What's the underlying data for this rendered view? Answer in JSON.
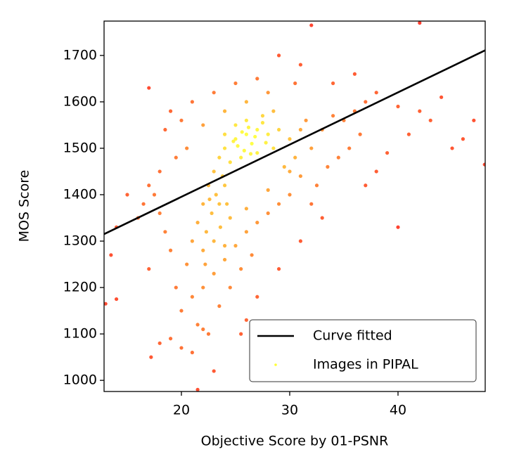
{
  "chart_data": {
    "type": "scatter",
    "xlabel": "Objective Score by 01-PSNR",
    "ylabel": "MOS Score",
    "xlim": [
      12.86,
      48.05
    ],
    "ylim": [
      976,
      1774
    ],
    "xticks": [
      20,
      30,
      40
    ],
    "yticks": [
      1000,
      1100,
      1200,
      1300,
      1400,
      1500,
      1600,
      1700
    ],
    "legend": "lower right",
    "series": [
      {
        "name": "Curve fitted",
        "type": "line",
        "color": "#000000",
        "x": [
          12.86,
          48.05
        ],
        "values": [
          1315,
          1711
        ]
      },
      {
        "name": "Images in PIPAL",
        "type": "scatter",
        "colormap": [
          "#ff2a1a",
          "#ffff33"
        ],
        "x": [
          25,
          26,
          27,
          24,
          25.5,
          26.5,
          27.5,
          28,
          24.5,
          23.5,
          25,
          26,
          28.5,
          27,
          29,
          24,
          26.8,
          25.2,
          23,
          22.5,
          23.2,
          22,
          22.8,
          21.5,
          22.3,
          23.5,
          24,
          21,
          22,
          23,
          24.5,
          30,
          31,
          32,
          30.5,
          29.5,
          31.5,
          33,
          34,
          35,
          36,
          37,
          36.5,
          35.5,
          34.5,
          33.5,
          32.5,
          31,
          30,
          29,
          28,
          27,
          26,
          25,
          24,
          23,
          22,
          21,
          20,
          21.5,
          22.5,
          23.5,
          24.5,
          25.5,
          26.5,
          20.5,
          19.5,
          19,
          18.5,
          18,
          17.5,
          17,
          16.5,
          16,
          15,
          14,
          13.5,
          13,
          14,
          17,
          17.2,
          18,
          19,
          20,
          21,
          22,
          23,
          21.5,
          24,
          26,
          28,
          30,
          32,
          33,
          31,
          29,
          27,
          26,
          25.5,
          30.5,
          31,
          29,
          27,
          25,
          23,
          21,
          20,
          19,
          18.5,
          17,
          32,
          34,
          36,
          38,
          40,
          42,
          44,
          46,
          47,
          48,
          45,
          43,
          41,
          39,
          38,
          37,
          40,
          42,
          18,
          19.5,
          20.5,
          22,
          24,
          26,
          28,
          28.5,
          27.5,
          26.2,
          25.8,
          24.8,
          26.4,
          27.8,
          25.6,
          23.8,
          22.6,
          23.6,
          22.2,
          24.2
        ],
        "values": [
          1520,
          1530,
          1540,
          1500,
          1480,
          1510,
          1555,
          1530,
          1470,
          1480,
          1550,
          1560,
          1500,
          1490,
          1540,
          1530,
          1525,
          1505,
          1450,
          1420,
          1400,
          1380,
          1360,
          1340,
          1320,
          1380,
          1420,
          1300,
          1280,
          1300,
          1350,
          1520,
          1540,
          1500,
          1480,
          1460,
          1560,
          1540,
          1570,
          1560,
          1580,
          1600,
          1530,
          1500,
          1480,
          1460,
          1420,
          1440,
          1400,
          1380,
          1360,
          1340,
          1320,
          1290,
          1260,
          1230,
          1200,
          1180,
          1150,
          1120,
          1100,
          1160,
          1200,
          1240,
          1270,
          1250,
          1200,
          1280,
          1320,
          1360,
          1400,
          1420,
          1380,
          1350,
          1400,
          1330,
          1270,
          1165,
          1175,
          1240,
          1050,
          1080,
          1090,
          1070,
          1060,
          1110,
          1020,
          980,
          1290,
          1370,
          1410,
          1450,
          1380,
          1350,
          1300,
          1240,
          1180,
          1130,
          1100,
          1640,
          1680,
          1700,
          1650,
          1640,
          1620,
          1600,
          1560,
          1580,
          1540,
          1630,
          1765,
          1640,
          1660,
          1620,
          1590,
          1580,
          1610,
          1520,
          1560,
          1465,
          1500,
          1560,
          1530,
          1490,
          1450,
          1420,
          1330,
          1770,
          1450,
          1480,
          1500,
          1550,
          1580,
          1600,
          1620,
          1580,
          1570,
          1545,
          1495,
          1515,
          1488,
          1512,
          1535,
          1440,
          1390,
          1330,
          1250,
          1380
        ]
      }
    ]
  }
}
